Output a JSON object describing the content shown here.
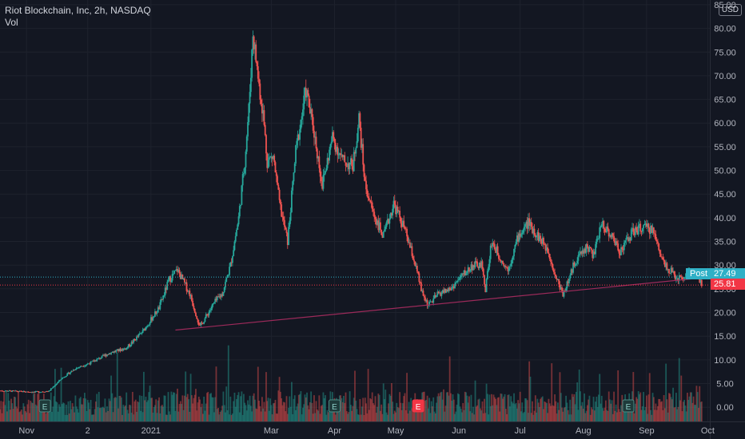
{
  "legend": {
    "title": "Riot Blockchain, Inc, 2h, NASDAQ",
    "volume_label": "Vol"
  },
  "currency_label": "USD",
  "post_label": "Post",
  "colors": {
    "background": "#131722",
    "up": "#26a69a",
    "down": "#ef5350",
    "grid": "#1e222d",
    "trendline": "#9c2a5a",
    "post_line": "#2fb0c6",
    "last_line": "#f23645"
  },
  "chart_data": {
    "type": "candlestick",
    "title": "Riot Blockchain, Inc, 2h, NASDAQ",
    "ylim": [
      -3,
      86
    ],
    "y_ticks": [
      0,
      5,
      10,
      15,
      20,
      25,
      30,
      35,
      40,
      45,
      50,
      55,
      60,
      65,
      70,
      75,
      80,
      85
    ],
    "y_tick_labels": [
      "0.00",
      "5.00",
      "10.00",
      "15.00",
      "20.00",
      "25.00",
      "30.00",
      "35.00",
      "40.00",
      "45.00",
      "50.00",
      "55.00",
      "60.00",
      "65.00",
      "70.00",
      "75.00",
      "80.00",
      "85.00"
    ],
    "x_tick_labels": [
      "Nov",
      "2",
      "2021",
      "Mar",
      "Apr",
      "May",
      "Jun",
      "Jul",
      "Aug",
      "Sep",
      "Oct"
    ],
    "x_tick_dates": [
      "2020-11-01",
      "2020-12-01",
      "2021-01-01",
      "2021-03-01",
      "2021-04-01",
      "2021-05-01",
      "2021-06-01",
      "2021-07-01",
      "2021-08-01",
      "2021-09-01",
      "2021-10-01"
    ],
    "x_range": [
      "2020-10-19",
      "2021-10-02"
    ],
    "price_path": [
      [
        "2020-10-19",
        3.5
      ],
      [
        "2020-11-05",
        3.2
      ],
      [
        "2020-11-12",
        3.4
      ],
      [
        "2020-11-18",
        6
      ],
      [
        "2020-11-25",
        8.2
      ],
      [
        "2020-12-03",
        9.5
      ],
      [
        "2020-12-12",
        11.5
      ],
      [
        "2020-12-20",
        12.5
      ],
      [
        "2020-12-28",
        16
      ],
      [
        "2021-01-05",
        21
      ],
      [
        "2021-01-10",
        27
      ],
      [
        "2021-01-14",
        29
      ],
      [
        "2021-01-20",
        24
      ],
      [
        "2021-01-25",
        17
      ],
      [
        "2021-02-01",
        22
      ],
      [
        "2021-02-05",
        24
      ],
      [
        "2021-02-09",
        30
      ],
      [
        "2021-02-13",
        40
      ],
      [
        "2021-02-16",
        52
      ],
      [
        "2021-02-18",
        63
      ],
      [
        "2021-02-20",
        79
      ],
      [
        "2021-02-23",
        68
      ],
      [
        "2021-02-25",
        62
      ],
      [
        "2021-02-27",
        52
      ],
      [
        "2021-03-02",
        53
      ],
      [
        "2021-03-05",
        43
      ],
      [
        "2021-03-09",
        35
      ],
      [
        "2021-03-13",
        54
      ],
      [
        "2021-03-18",
        67
      ],
      [
        "2021-03-22",
        58
      ],
      [
        "2021-03-26",
        47
      ],
      [
        "2021-03-31",
        57
      ],
      [
        "2021-04-05",
        52
      ],
      [
        "2021-04-10",
        51
      ],
      [
        "2021-04-13",
        61
      ],
      [
        "2021-04-16",
        47
      ],
      [
        "2021-04-20",
        41
      ],
      [
        "2021-04-25",
        36
      ],
      [
        "2021-04-30",
        43
      ],
      [
        "2021-05-05",
        38
      ],
      [
        "2021-05-10",
        31
      ],
      [
        "2021-05-14",
        24
      ],
      [
        "2021-05-17",
        21.5
      ],
      [
        "2021-05-22",
        24
      ],
      [
        "2021-05-28",
        25
      ],
      [
        "2021-06-03",
        28
      ],
      [
        "2021-06-08",
        30
      ],
      [
        "2021-06-12",
        30
      ],
      [
        "2021-06-14",
        25
      ],
      [
        "2021-06-17",
        35
      ],
      [
        "2021-06-22",
        31
      ],
      [
        "2021-06-25",
        29
      ],
      [
        "2021-06-30",
        36
      ],
      [
        "2021-07-05",
        39
      ],
      [
        "2021-07-10",
        36
      ],
      [
        "2021-07-15",
        33
      ],
      [
        "2021-07-18",
        28
      ],
      [
        "2021-07-22",
        24
      ],
      [
        "2021-07-25",
        27
      ],
      [
        "2021-07-28",
        31
      ],
      [
        "2021-08-03",
        34
      ],
      [
        "2021-08-06",
        32
      ],
      [
        "2021-08-10",
        39
      ],
      [
        "2021-08-15",
        36
      ],
      [
        "2021-08-19",
        33
      ],
      [
        "2021-08-25",
        37
      ],
      [
        "2021-08-30",
        38
      ],
      [
        "2021-09-04",
        37.5
      ],
      [
        "2021-09-09",
        31
      ],
      [
        "2021-09-14",
        28
      ],
      [
        "2021-09-18",
        27
      ],
      [
        "2021-09-22",
        29
      ],
      [
        "2021-09-26",
        27
      ],
      [
        "2021-09-28",
        25.81
      ]
    ],
    "trendline": {
      "start": [
        "2021-01-13",
        16.3
      ],
      "end": [
        "2021-09-30",
        27.4
      ]
    },
    "post_price": {
      "label": "Post",
      "value": "27.49"
    },
    "last_price": {
      "value": "25.81"
    },
    "earnings_markers": [
      {
        "date": "2020-11-10",
        "label": "E",
        "type": "past"
      },
      {
        "date": "2021-04-01",
        "label": "E",
        "type": "past"
      },
      {
        "date": "2021-05-12",
        "label": "E",
        "type": "miss"
      },
      {
        "date": "2021-08-23",
        "label": "E",
        "type": "past"
      }
    ],
    "volume": {
      "label": "Vol"
    }
  }
}
